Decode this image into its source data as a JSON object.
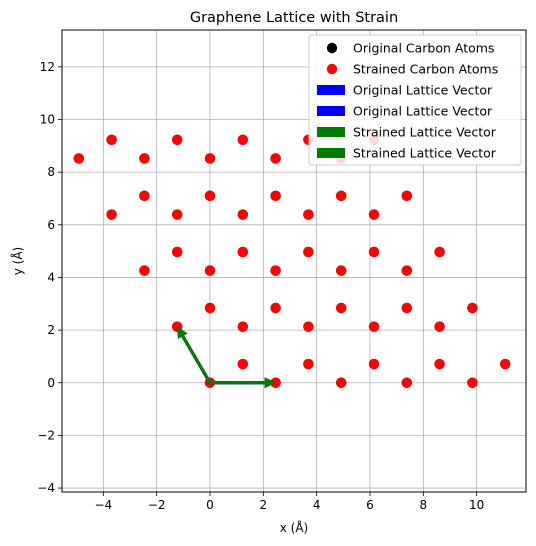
{
  "chart_data": {
    "type": "scatter",
    "title": "Graphene Lattice with Strain",
    "xlabel": "x (Å)",
    "ylabel": "y (Å)",
    "xlim": [
      -5.55,
      11.85
    ],
    "ylim": [
      -4.15,
      13.4
    ],
    "xticks": [
      -4,
      -2,
      0,
      2,
      4,
      6,
      8,
      10
    ],
    "yticks": [
      -4,
      -2,
      0,
      2,
      4,
      6,
      8,
      10,
      12
    ],
    "xtick_labels": [
      "−4",
      "−2",
      "0",
      "2",
      "4",
      "6",
      "8",
      "10"
    ],
    "ytick_labels": [
      "−4",
      "−2",
      "0",
      "2",
      "4",
      "6",
      "8",
      "10",
      "12"
    ],
    "grid": true,
    "legend_position": "top-right",
    "colors": {
      "original_atoms": "#000000",
      "strained_atoms": "#ff0000",
      "original_vector": "#0000ff",
      "strained_vector": "#007a00",
      "grid": "#b0b0b0"
    },
    "series": [
      {
        "name": "Original Carbon Atoms",
        "kind": "points",
        "points": [
          [
            0,
            0
          ],
          [
            2.46,
            0
          ],
          [
            4.92,
            0
          ],
          [
            7.38,
            0
          ],
          [
            9.84,
            0
          ],
          [
            1.23,
            0.71
          ],
          [
            3.69,
            0.71
          ],
          [
            6.15,
            0.71
          ],
          [
            8.61,
            0.71
          ],
          [
            11.07,
            0.71
          ],
          [
            -1.23,
            2.13
          ],
          [
            1.23,
            2.13
          ],
          [
            3.69,
            2.13
          ],
          [
            6.15,
            2.13
          ],
          [
            8.61,
            2.13
          ],
          [
            0,
            2.84
          ],
          [
            2.46,
            2.84
          ],
          [
            4.92,
            2.84
          ],
          [
            7.38,
            2.84
          ],
          [
            9.84,
            2.84
          ],
          [
            -2.46,
            4.26
          ],
          [
            0,
            4.26
          ],
          [
            2.46,
            4.26
          ],
          [
            4.92,
            4.26
          ],
          [
            7.38,
            4.26
          ],
          [
            -1.23,
            4.97
          ],
          [
            1.23,
            4.97
          ],
          [
            3.69,
            4.97
          ],
          [
            6.15,
            4.97
          ],
          [
            8.61,
            4.97
          ],
          [
            -3.69,
            6.39
          ],
          [
            -1.23,
            6.39
          ],
          [
            1.23,
            6.39
          ],
          [
            3.69,
            6.39
          ],
          [
            6.15,
            6.39
          ],
          [
            -2.46,
            7.1
          ],
          [
            0,
            7.1
          ],
          [
            2.46,
            7.1
          ],
          [
            4.92,
            7.1
          ],
          [
            7.38,
            7.1
          ],
          [
            -4.92,
            8.52
          ],
          [
            -2.46,
            8.52
          ],
          [
            0,
            8.52
          ],
          [
            2.46,
            8.52
          ],
          [
            4.92,
            8.52
          ],
          [
            -3.69,
            9.23
          ],
          [
            -1.23,
            9.23
          ],
          [
            1.23,
            9.23
          ],
          [
            3.69,
            9.23
          ],
          [
            6.15,
            9.23
          ]
        ]
      },
      {
        "name": "Strained Carbon Atoms",
        "kind": "points",
        "points": [
          [
            0,
            0
          ],
          [
            2.46,
            0
          ],
          [
            4.92,
            0
          ],
          [
            7.38,
            0
          ],
          [
            9.84,
            0
          ],
          [
            1.23,
            0.71
          ],
          [
            3.69,
            0.71
          ],
          [
            6.15,
            0.71
          ],
          [
            8.61,
            0.71
          ],
          [
            11.07,
            0.71
          ],
          [
            -1.23,
            2.13
          ],
          [
            1.23,
            2.13
          ],
          [
            3.69,
            2.13
          ],
          [
            6.15,
            2.13
          ],
          [
            8.61,
            2.13
          ],
          [
            0,
            2.84
          ],
          [
            2.46,
            2.84
          ],
          [
            4.92,
            2.84
          ],
          [
            7.38,
            2.84
          ],
          [
            9.84,
            2.84
          ],
          [
            -2.46,
            4.26
          ],
          [
            0,
            4.26
          ],
          [
            2.46,
            4.26
          ],
          [
            4.92,
            4.26
          ],
          [
            7.38,
            4.26
          ],
          [
            -1.23,
            4.97
          ],
          [
            1.23,
            4.97
          ],
          [
            3.69,
            4.97
          ],
          [
            6.15,
            4.97
          ],
          [
            8.61,
            4.97
          ],
          [
            -3.69,
            6.39
          ],
          [
            -1.23,
            6.39
          ],
          [
            1.23,
            6.39
          ],
          [
            3.69,
            6.39
          ],
          [
            6.15,
            6.39
          ],
          [
            -2.46,
            7.1
          ],
          [
            0,
            7.1
          ],
          [
            2.46,
            7.1
          ],
          [
            4.92,
            7.1
          ],
          [
            7.38,
            7.1
          ],
          [
            -4.92,
            8.52
          ],
          [
            -2.46,
            8.52
          ],
          [
            0,
            8.52
          ],
          [
            2.46,
            8.52
          ],
          [
            4.92,
            8.52
          ],
          [
            -3.69,
            9.23
          ],
          [
            -1.23,
            9.23
          ],
          [
            1.23,
            9.23
          ],
          [
            3.69,
            9.23
          ],
          [
            6.15,
            9.23
          ]
        ]
      },
      {
        "name": "Original Lattice Vector",
        "kind": "vector",
        "from": [
          0,
          0
        ],
        "to": [
          2.46,
          0
        ]
      },
      {
        "name": "Original Lattice Vector",
        "kind": "vector",
        "from": [
          0,
          0
        ],
        "to": [
          -1.23,
          2.13
        ]
      },
      {
        "name": "Strained Lattice Vector",
        "kind": "vector",
        "from": [
          0,
          0
        ],
        "to": [
          2.46,
          0
        ]
      },
      {
        "name": "Strained Lattice Vector",
        "kind": "vector",
        "from": [
          0,
          0
        ],
        "to": [
          -1.23,
          2.13
        ]
      }
    ]
  }
}
